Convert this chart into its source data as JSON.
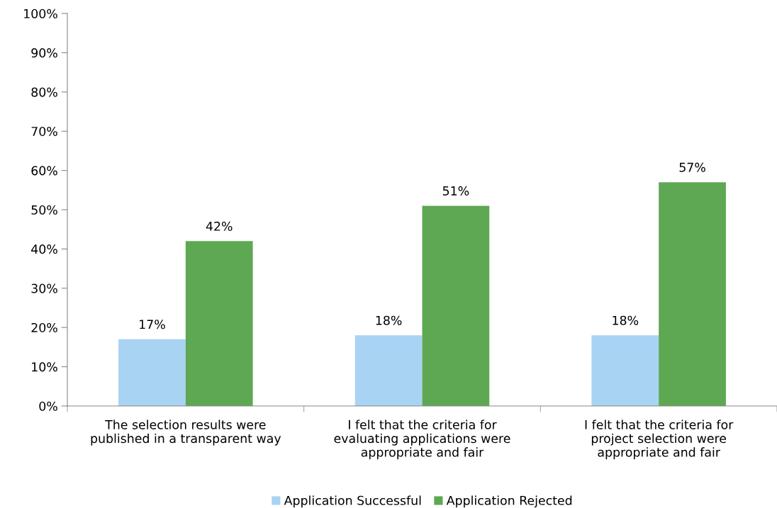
{
  "chart_data": {
    "type": "bar",
    "categories": [
      "The selection results were\npublished in a transparent way",
      "I felt that the criteria for\nevaluating applications were\nappropriate and fair",
      "I felt that the criteria for\nproject selection were\nappropriate and fair"
    ],
    "series": [
      {
        "name": "Application Successful",
        "color": "#a9d3f3",
        "values": [
          17,
          18,
          18
        ],
        "value_labels": [
          "17%",
          "18%",
          "18%"
        ]
      },
      {
        "name": "Application Rejected",
        "color": "#5ea853",
        "values": [
          42,
          51,
          57
        ],
        "value_labels": [
          "42%",
          "51%",
          "57%"
        ]
      }
    ],
    "ylim": [
      0,
      100
    ],
    "yticks": [
      {
        "value": 0,
        "label": "0%"
      },
      {
        "value": 10,
        "label": "10%"
      },
      {
        "value": 20,
        "label": "20%"
      },
      {
        "value": 30,
        "label": "30%"
      },
      {
        "value": 40,
        "label": "40%"
      },
      {
        "value": 50,
        "label": "50%"
      },
      {
        "value": 60,
        "label": "60%"
      },
      {
        "value": 70,
        "label": "70%"
      },
      {
        "value": 80,
        "label": "80%"
      },
      {
        "value": 90,
        "label": "90%"
      },
      {
        "value": 100,
        "label": "100%"
      }
    ],
    "grid": false,
    "legend": "bottom"
  }
}
